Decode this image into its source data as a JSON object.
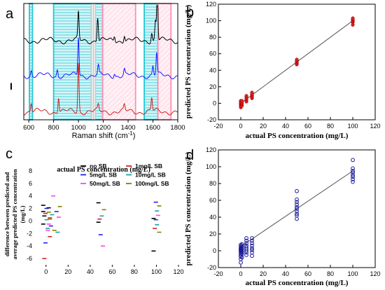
{
  "chart_data": [
    {
      "panel": "a",
      "type": "line",
      "xlabel": "Raman shift (cm",
      "xlabel_sup": "-1",
      "xlabel_tail": ")",
      "xlim": [
        560,
        1800
      ],
      "xticks": [
        600,
        800,
        1000,
        1200,
        1400,
        1600,
        1800
      ],
      "ylabel": "I",
      "grid": false,
      "highlight_bands": [
        {
          "x0": 605,
          "x1": 630,
          "color": "#26c7d6",
          "style": "hatched"
        },
        {
          "x0": 800,
          "x1": 1195,
          "color": "#26c7d6",
          "style": "hatched"
        },
        {
          "x0": 1100,
          "x1": 1140,
          "color": "#c0c0c0",
          "style": "hatched"
        },
        {
          "x0": 1195,
          "x1": 1460,
          "color": "#ff8fb0",
          "style": "hatched"
        },
        {
          "x0": 1530,
          "x1": 1640,
          "color": "#26c7d6",
          "style": "hatched"
        },
        {
          "x0": 1640,
          "x1": 1745,
          "color": "#ff8fb0",
          "style": "hatched"
        }
      ],
      "series": [
        {
          "color": "#000000",
          "baseline": 0.7,
          "peaks": [
            [
              1000,
              0.25
            ],
            [
              1155,
              0.22
            ],
            [
              1290,
              0.05
            ],
            [
              1370,
              0.06
            ],
            [
              1590,
              0.08
            ],
            [
              1620,
              0.18
            ],
            [
              1635,
              0.5
            ]
          ]
        },
        {
          "color": "#1a1aff",
          "baseline": 0.38,
          "peaks": [
            [
              620,
              0.05
            ],
            [
              830,
              0.06
            ],
            [
              1000,
              0.35
            ],
            [
              1160,
              0.08
            ],
            [
              1290,
              0.03
            ],
            [
              1370,
              0.05
            ],
            [
              1600,
              0.08
            ],
            [
              1630,
              0.2
            ]
          ]
        },
        {
          "color": "#cc2020",
          "baseline": 0.05,
          "peaks": [
            [
              620,
              0.08
            ],
            [
              840,
              0.14
            ],
            [
              1000,
              0.45
            ],
            [
              1160,
              0.05
            ],
            [
              1370,
              0.05
            ],
            [
              1590,
              0.12
            ]
          ]
        }
      ]
    },
    {
      "panel": "b",
      "type": "scatter",
      "xlabel": "actual PS concentration (mg/L)",
      "ylabel": "predicted PS concentration (mg/L)",
      "xlim": [
        -20,
        120
      ],
      "ylim": [
        -20,
        120
      ],
      "xticks": [
        -20,
        0,
        20,
        40,
        60,
        80,
        100,
        120
      ],
      "yticks": [
        -20,
        0,
        20,
        40,
        60,
        80,
        100,
        120
      ],
      "marker": "circle-filled",
      "color": "#e02020",
      "fit_line": {
        "x": [
          0,
          100
        ],
        "y": [
          0,
          100
        ]
      },
      "points": [
        [
          0,
          -5
        ],
        [
          0,
          -3
        ],
        [
          0,
          -2
        ],
        [
          0,
          -1
        ],
        [
          0,
          0
        ],
        [
          0,
          1
        ],
        [
          0,
          2
        ],
        [
          0,
          3
        ],
        [
          1,
          -3
        ],
        [
          1,
          -1
        ],
        [
          1,
          0
        ],
        [
          1,
          1
        ],
        [
          1,
          3
        ],
        [
          5,
          2
        ],
        [
          5,
          4
        ],
        [
          5,
          5
        ],
        [
          5,
          6
        ],
        [
          5,
          8
        ],
        [
          5,
          9
        ],
        [
          10,
          6
        ],
        [
          10,
          8
        ],
        [
          10,
          9
        ],
        [
          10,
          10
        ],
        [
          10,
          11
        ],
        [
          10,
          13
        ],
        [
          50,
          47
        ],
        [
          50,
          48
        ],
        [
          50,
          49
        ],
        [
          50,
          50
        ],
        [
          50,
          51
        ],
        [
          50,
          52
        ],
        [
          50,
          53
        ],
        [
          100,
          95
        ],
        [
          100,
          98
        ],
        [
          100,
          99
        ],
        [
          100,
          100
        ],
        [
          100,
          101
        ],
        [
          100,
          102
        ],
        [
          100,
          103
        ]
      ]
    },
    {
      "panel": "c",
      "type": "scatter",
      "xlabel": "actual PS concentration (mg/L)",
      "ylabel_lines": [
        "difference between predicted and",
        "average predicted PS concentration",
        "(mg/L)"
      ],
      "xlim": [
        -10,
        120
      ],
      "ylim": [
        -7,
        9
      ],
      "xticks": [
        0,
        20,
        40,
        60,
        80,
        100,
        120
      ],
      "yticks": [
        -6,
        -4,
        -2,
        0,
        2,
        4,
        6,
        8
      ],
      "marker": "dash",
      "legend_position": "top-right",
      "series": [
        {
          "name": "no SB",
          "color": "#000000",
          "points": [
            [
              0,
              2.5
            ],
            [
              0,
              1.5
            ],
            [
              0,
              -0.5
            ],
            [
              1,
              0.8
            ],
            [
              5,
              2.1
            ],
            [
              50,
              2.9
            ],
            [
              50,
              -0.2
            ],
            [
              100,
              -4.8
            ],
            [
              100,
              0.4
            ]
          ]
        },
        {
          "name": "1mg/L SB",
          "color": "#dd2020",
          "points": [
            [
              0,
              -6
            ],
            [
              1,
              1.2
            ],
            [
              5,
              0.5
            ],
            [
              5,
              -2.5
            ],
            [
              50,
              0.3
            ],
            [
              100,
              -1.2
            ]
          ]
        },
        {
          "name": "5mg/L SB",
          "color": "#2020ee",
          "points": [
            [
              0,
              -3.5
            ],
            [
              1,
              2.0
            ],
            [
              5,
              -0.8
            ],
            [
              10,
              1.5
            ],
            [
              50,
              -2.2
            ],
            [
              100,
              3.0
            ],
            [
              100,
              0.2
            ]
          ]
        },
        {
          "name": "10mg/L SB",
          "color": "#20a0a0",
          "points": [
            [
              0,
              0.2
            ],
            [
              1,
              -1.2
            ],
            [
              5,
              1.0
            ],
            [
              10,
              -1.8
            ],
            [
              50,
              0.8
            ],
            [
              100,
              1.6
            ],
            [
              100,
              -0.6
            ]
          ]
        },
        {
          "name": "50mg/L SB",
          "color": "#ff40ff",
          "points": [
            [
              0,
              -1.5
            ],
            [
              1,
              -0.5
            ],
            [
              5,
              4.0
            ],
            [
              10,
              0.6
            ],
            [
              50,
              -4.0
            ],
            [
              100,
              0.9
            ]
          ]
        },
        {
          "name": "100mg/L SB",
          "color": "#808000",
          "points": [
            [
              0,
              1.4
            ],
            [
              1,
              0.3
            ],
            [
              5,
              -1.5
            ],
            [
              10,
              2.3
            ],
            [
              50,
              1.8
            ],
            [
              100,
              -1.8
            ],
            [
              100,
              2.4
            ]
          ]
        }
      ]
    },
    {
      "panel": "d",
      "type": "scatter",
      "xlabel": "actual PS concentration (mg/L)",
      "ylabel": "predicted PS concentration (mg/L)",
      "xlim": [
        -20,
        120
      ],
      "ylim": [
        -20,
        120
      ],
      "xticks": [
        -20,
        0,
        20,
        40,
        60,
        80,
        100,
        120
      ],
      "yticks": [
        -20,
        0,
        20,
        40,
        60,
        80,
        100,
        120
      ],
      "marker": "circle-open",
      "color": "#1a1a99",
      "fit_line": {
        "x": [
          0,
          100
        ],
        "y": [
          5,
          95
        ]
      },
      "points": [
        [
          0,
          -14
        ],
        [
          0,
          -10
        ],
        [
          0,
          -7
        ],
        [
          0,
          -5
        ],
        [
          0,
          -3
        ],
        [
          0,
          -1
        ],
        [
          0,
          0
        ],
        [
          0,
          1
        ],
        [
          0,
          2
        ],
        [
          0,
          3
        ],
        [
          0,
          5
        ],
        [
          0,
          7
        ],
        [
          1,
          -8
        ],
        [
          1,
          -4
        ],
        [
          1,
          -2
        ],
        [
          1,
          0
        ],
        [
          1,
          2
        ],
        [
          1,
          4
        ],
        [
          1,
          6
        ],
        [
          1,
          8
        ],
        [
          5,
          -5
        ],
        [
          5,
          -2
        ],
        [
          5,
          0
        ],
        [
          5,
          2
        ],
        [
          5,
          4
        ],
        [
          5,
          6
        ],
        [
          5,
          9
        ],
        [
          5,
          12
        ],
        [
          5,
          15
        ],
        [
          10,
          -6
        ],
        [
          10,
          -2
        ],
        [
          10,
          1
        ],
        [
          10,
          3
        ],
        [
          10,
          6
        ],
        [
          10,
          9
        ],
        [
          10,
          12
        ],
        [
          10,
          15
        ],
        [
          50,
          38
        ],
        [
          50,
          42
        ],
        [
          50,
          44
        ],
        [
          50,
          47
        ],
        [
          50,
          50
        ],
        [
          50,
          52
        ],
        [
          50,
          55
        ],
        [
          50,
          58
        ],
        [
          50,
          61
        ],
        [
          50,
          71
        ],
        [
          100,
          82
        ],
        [
          100,
          85
        ],
        [
          100,
          88
        ],
        [
          100,
          90
        ],
        [
          100,
          93
        ],
        [
          100,
          95
        ],
        [
          100,
          98
        ],
        [
          100,
          108
        ]
      ]
    }
  ],
  "panel_labels": {
    "a": "a",
    "b": "b",
    "c": "c",
    "d": "d"
  }
}
